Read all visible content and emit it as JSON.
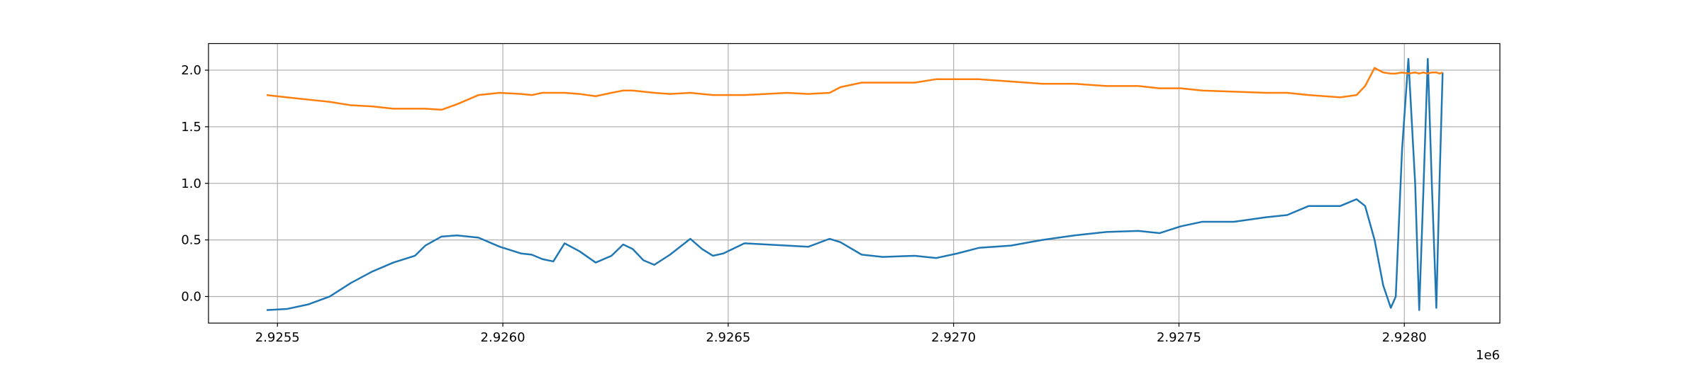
{
  "chart_data": {
    "type": "line",
    "x": [
      2925476,
      2925521,
      2925568,
      2925616,
      2925663,
      2925710,
      2925757,
      2925805,
      2925828,
      2925864,
      2925899,
      2925946,
      2925993,
      2926041,
      2926064,
      2926088,
      2926112,
      2926137,
      2926170,
      2926206,
      2926241,
      2926267,
      2926288,
      2926312,
      2926336,
      2926371,
      2926416,
      2926442,
      2926466,
      2926489,
      2926536,
      2926584,
      2926631,
      2926678,
      2926725,
      2926749,
      2926796,
      2926843,
      2926914,
      2926961,
      2927008,
      2927056,
      2927127,
      2927197,
      2927268,
      2927339,
      2927410,
      2927457,
      2927504,
      2927551,
      2927622,
      2927693,
      2927740,
      2927788,
      2927858,
      2927894,
      2927913,
      2927934,
      2927953,
      2927970,
      2927981,
      2927995,
      2928009,
      2928024,
      2928033,
      2928042,
      2928052,
      2928061,
      2928071,
      2928078,
      2928085
    ],
    "series": [
      {
        "color": "#1f77b4",
        "values": [
          -0.12,
          -0.11,
          -0.07,
          0.0,
          0.12,
          0.22,
          0.3,
          0.36,
          0.45,
          0.53,
          0.54,
          0.52,
          0.44,
          0.38,
          0.37,
          0.33,
          0.31,
          0.47,
          0.4,
          0.3,
          0.36,
          0.46,
          0.42,
          0.32,
          0.28,
          0.37,
          0.51,
          0.42,
          0.36,
          0.38,
          0.47,
          0.46,
          0.45,
          0.44,
          0.51,
          0.48,
          0.37,
          0.35,
          0.36,
          0.34,
          0.38,
          0.43,
          0.45,
          0.5,
          0.54,
          0.57,
          0.58,
          0.56,
          0.62,
          0.66,
          0.66,
          0.7,
          0.72,
          0.8,
          0.8,
          0.86,
          0.8,
          0.5,
          0.1,
          -0.1,
          0.0,
          1.3,
          2.1,
          1.0,
          -0.12,
          0.9,
          2.1,
          1.0,
          -0.1,
          1.0,
          1.98
        ]
      },
      {
        "color": "#ff7f0e",
        "values": [
          1.78,
          1.76,
          1.74,
          1.72,
          1.69,
          1.68,
          1.66,
          1.66,
          1.66,
          1.65,
          1.7,
          1.78,
          1.8,
          1.79,
          1.78,
          1.8,
          1.8,
          1.8,
          1.79,
          1.77,
          1.8,
          1.82,
          1.82,
          1.81,
          1.8,
          1.79,
          1.8,
          1.79,
          1.78,
          1.78,
          1.78,
          1.79,
          1.8,
          1.79,
          1.8,
          1.85,
          1.89,
          1.89,
          1.89,
          1.92,
          1.92,
          1.92,
          1.9,
          1.88,
          1.88,
          1.86,
          1.86,
          1.84,
          1.84,
          1.82,
          1.81,
          1.8,
          1.8,
          1.78,
          1.76,
          1.78,
          1.86,
          2.02,
          1.98,
          1.97,
          1.97,
          1.98,
          1.97,
          1.98,
          1.97,
          1.98,
          1.97,
          1.98,
          1.98,
          1.97,
          1.98
        ]
      }
    ],
    "xlim": [
      2925347,
      2928212
    ],
    "xticks": [
      {
        "value": 2925500,
        "label": "2.9255"
      },
      {
        "value": 2926000,
        "label": "2.9260"
      },
      {
        "value": 2926500,
        "label": "2.9265"
      },
      {
        "value": 2927000,
        "label": "2.9270"
      },
      {
        "value": 2927500,
        "label": "2.9275"
      },
      {
        "value": 2928000,
        "label": "2.9280"
      }
    ],
    "x_offset_label": "1e6",
    "ylim": [
      -0.235,
      2.235
    ],
    "yticks": [
      {
        "value": 0,
        "label": "0.0"
      },
      0.5,
      {
        "value": 1,
        "label": "1.0"
      },
      1.5,
      {
        "value": 2,
        "label": "2.0"
      }
    ],
    "grid": true
  }
}
